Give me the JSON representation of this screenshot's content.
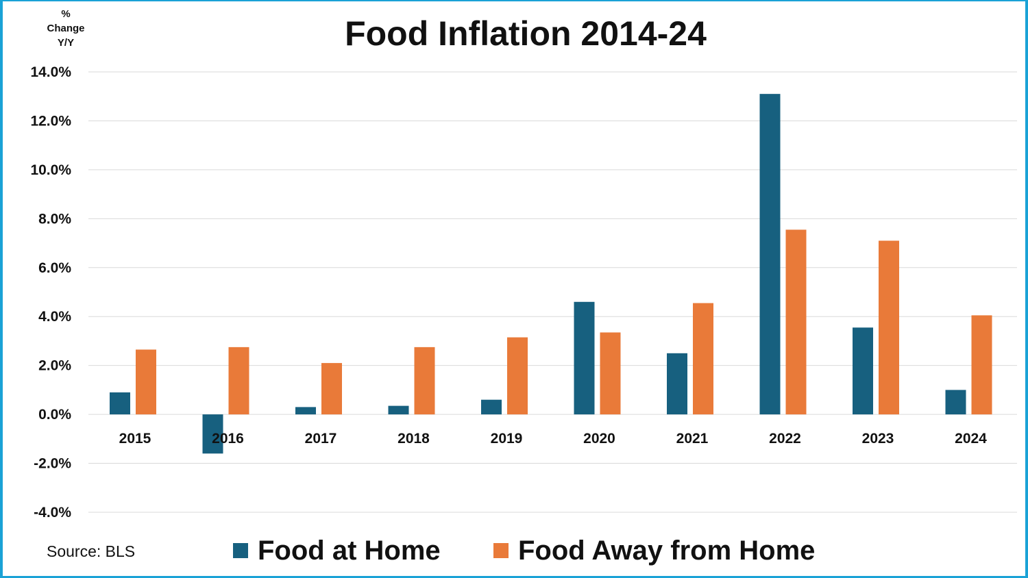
{
  "title": "Food Inflation 2014-24",
  "unit_label": {
    "line1": "%",
    "line2": "Change",
    "line3": "Y/Y"
  },
  "source": "Source: BLS",
  "colors": {
    "food_at_home": "#17607f",
    "food_away": "#e97a39",
    "frame": "#1aa2d6",
    "grid": "#d9d9d9"
  },
  "chart_data": {
    "type": "bar",
    "title": "Food Inflation 2014-24",
    "ylabel": "% Change Y/Y",
    "ylim": [
      -4,
      14
    ],
    "yticks": [
      14,
      12,
      10,
      8,
      6,
      4,
      2,
      0,
      -2,
      -4
    ],
    "ytick_labels": [
      "14.0%",
      "12.0%",
      "10.0%",
      "8.0%",
      "6.0%",
      "4.0%",
      "2.0%",
      "0.0%",
      "-2.0%",
      "-4.0%"
    ],
    "grid": true,
    "categories": [
      "2015",
      "2016",
      "2017",
      "2018",
      "2019",
      "2020",
      "2021",
      "2022",
      "2023",
      "2024"
    ],
    "series": [
      {
        "name": "Food at Home",
        "color": "#17607f",
        "values": [
          0.9,
          -1.6,
          0.3,
          0.35,
          0.6,
          4.6,
          2.5,
          13.1,
          3.55,
          1.0
        ]
      },
      {
        "name": "Food Away from Home",
        "color": "#e97a39",
        "values": [
          2.65,
          2.75,
          2.1,
          2.75,
          3.15,
          3.35,
          4.55,
          7.55,
          7.1,
          4.05
        ]
      }
    ],
    "legend_position": "bottom"
  }
}
